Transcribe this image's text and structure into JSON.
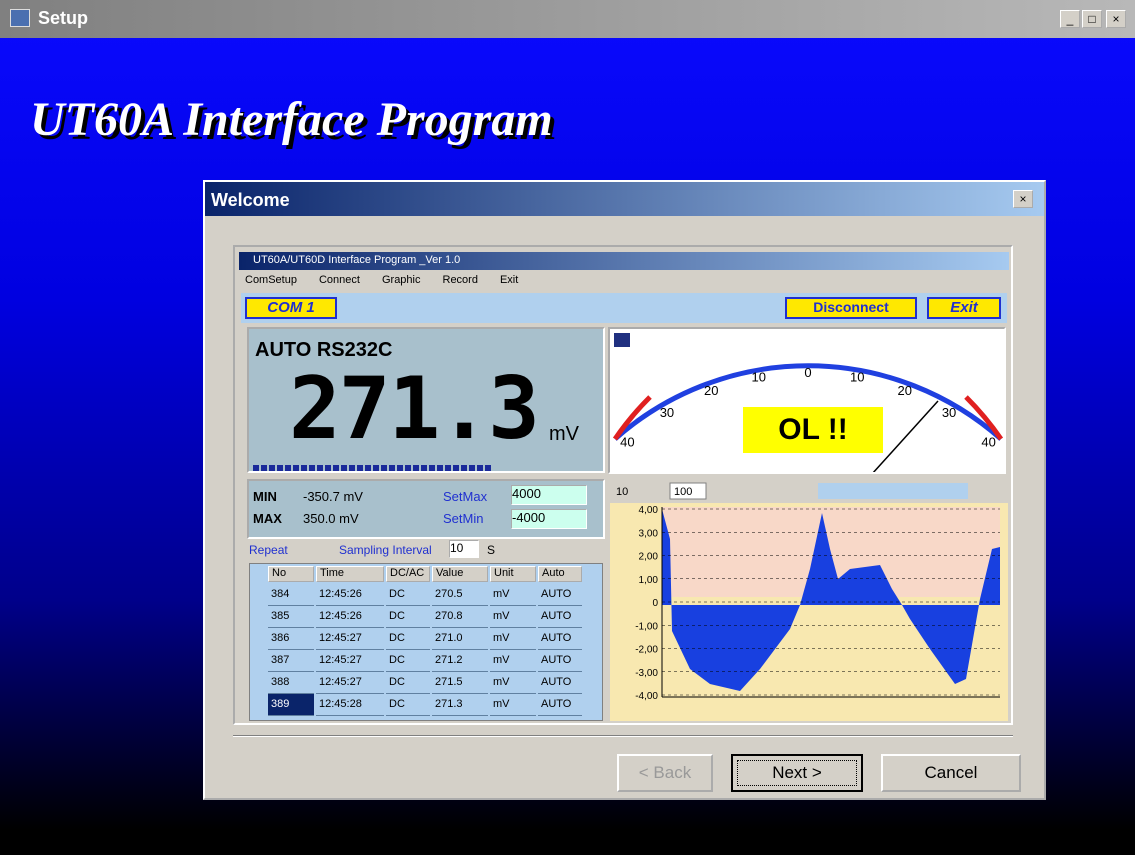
{
  "window": {
    "title": "Setup"
  },
  "heading": "UT60A Interface Program",
  "dialog": {
    "title": "Welcome",
    "buttons": {
      "back": "< Back",
      "next": "Next >",
      "cancel": "Cancel"
    }
  },
  "app": {
    "title": "UT60A/UT60D Interface Program _Ver 1.0",
    "menu": [
      "ComSetup",
      "Connect",
      "Graphic",
      "Record",
      "Exit"
    ],
    "port": "COM 1",
    "disconnect": "Disconnect",
    "exit": "Exit",
    "mode": "AUTO RS232C",
    "reading": "271.3",
    "unit": "mV",
    "min_label": "MIN",
    "min_value": "-350.7 mV",
    "max_label": "MAX",
    "max_value": "350.0 mV",
    "set_max_label": "SetMax",
    "set_max": "4000",
    "set_min_label": "SetMin",
    "set_min": "-4000",
    "repeat": "Repeat",
    "sampling": "Sampling Interval",
    "interval": "10",
    "seconds": "S",
    "gauge_labels": [
      "40",
      "30",
      "20",
      "10",
      "0",
      "10",
      "20",
      "30",
      "40"
    ],
    "overload": "OL !!",
    "table": {
      "header": [
        "No",
        "Time",
        "DC/AC",
        "Value",
        "Unit",
        "Auto"
      ],
      "rows": [
        [
          "384",
          "12:45:26",
          "DC",
          "270.5",
          "mV",
          "AUTO"
        ],
        [
          "385",
          "12:45:26",
          "DC",
          "270.8",
          "mV",
          "AUTO"
        ],
        [
          "386",
          "12:45:27",
          "DC",
          "271.0",
          "mV",
          "AUTO"
        ],
        [
          "387",
          "12:45:27",
          "DC",
          "271.2",
          "mV",
          "AUTO"
        ],
        [
          "388",
          "12:45:27",
          "DC",
          "271.5",
          "mV",
          "AUTO"
        ],
        [
          "389",
          "12:45:28",
          "DC",
          "271.3",
          "mV",
          "AUTO"
        ]
      ]
    },
    "chart_scale": "10",
    "chart_count": "100",
    "chart_yticks": [
      "4,00",
      "3,00",
      "2,00",
      "1,00",
      "0",
      "-1,00",
      "-2,00",
      "-3,00",
      "-4,00"
    ]
  }
}
